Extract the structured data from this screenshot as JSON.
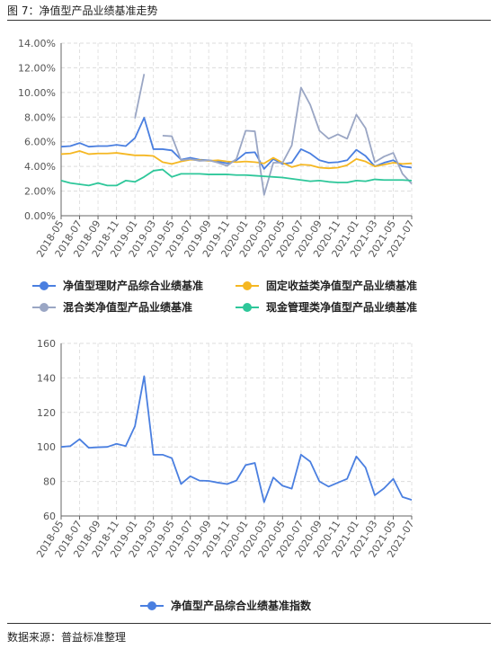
{
  "figure": {
    "title": "图 7：净值型产品业绩基准走势",
    "source": "数据来源：普益标准整理"
  },
  "chart_data": [
    {
      "type": "line",
      "x": [
        "2018-05",
        "2018-06",
        "2018-07",
        "2018-08",
        "2018-09",
        "2018-10",
        "2018-11",
        "2018-12",
        "2019-01",
        "2019-02",
        "2019-03",
        "2019-04",
        "2019-05",
        "2019-06",
        "2019-07",
        "2019-08",
        "2019-09",
        "2019-10",
        "2019-11",
        "2019-12",
        "2020-01",
        "2020-02",
        "2020-03",
        "2020-04",
        "2020-05",
        "2020-06",
        "2020-07",
        "2020-08",
        "2020-09",
        "2020-10",
        "2020-11",
        "2020-12",
        "2021-01",
        "2021-02",
        "2021-03",
        "2021-04",
        "2021-05",
        "2021-06",
        "2021-07"
      ],
      "x_tick_labels": [
        "2018-05",
        "2018-07",
        "2018-09",
        "2018-11",
        "2019-01",
        "2019-03",
        "2019-05",
        "2019-07",
        "2019-09",
        "2019-11",
        "2020-01",
        "2020-03",
        "2020-05",
        "2020-07",
        "2020-09",
        "2020-11",
        "2021-01",
        "2021-03",
        "2021-05",
        "2021-07"
      ],
      "y_tick_labels": [
        "0.00%",
        "2.00%",
        "4.00%",
        "6.00%",
        "8.00%",
        "10.00%",
        "12.00%",
        "14.00%"
      ],
      "ylim": [
        0,
        14
      ],
      "grid": true,
      "legend_position": "bottom",
      "series": [
        {
          "name": "净值型理财产品综合业绩基准",
          "color": "#4a7fe0",
          "values": [
            5.6,
            5.65,
            5.9,
            5.6,
            5.65,
            5.65,
            5.75,
            5.65,
            6.3,
            7.95,
            5.4,
            5.4,
            5.3,
            4.55,
            4.7,
            4.55,
            4.5,
            4.4,
            4.25,
            4.5,
            5.1,
            5.15,
            3.8,
            4.6,
            4.2,
            4.3,
            5.4,
            5.05,
            4.5,
            4.3,
            4.35,
            4.5,
            5.35,
            4.85,
            4.0,
            4.3,
            4.5,
            4.0,
            3.9
          ]
        },
        {
          "name": "固定收益类净值型产品业绩基准",
          "color": "#f5b722",
          "values": [
            5.0,
            5.05,
            5.25,
            5.0,
            5.05,
            5.05,
            5.1,
            5.0,
            4.9,
            4.9,
            4.85,
            4.35,
            4.2,
            4.4,
            4.55,
            4.5,
            4.45,
            4.5,
            4.4,
            4.35,
            4.4,
            4.35,
            4.25,
            4.7,
            4.3,
            3.95,
            4.15,
            4.1,
            3.9,
            3.85,
            3.9,
            4.1,
            4.6,
            4.4,
            4.0,
            4.15,
            4.3,
            4.2,
            4.25
          ]
        },
        {
          "name": "混合类净值型产品业绩基准",
          "color": "#9aa6c4",
          "values": [
            null,
            null,
            null,
            null,
            null,
            null,
            null,
            null,
            7.9,
            11.5,
            null,
            6.5,
            6.45,
            4.5,
            4.6,
            4.45,
            4.5,
            4.3,
            4.05,
            4.6,
            6.9,
            6.85,
            1.7,
            4.3,
            4.3,
            5.7,
            10.4,
            9.0,
            6.9,
            6.25,
            6.6,
            6.25,
            8.2,
            7.1,
            4.35,
            4.8,
            5.1,
            3.4,
            2.6
          ]
        },
        {
          "name": "现金管理类净值型产品业绩基准",
          "color": "#2ec79a",
          "values": [
            2.85,
            2.65,
            2.55,
            2.45,
            2.65,
            2.45,
            2.45,
            2.85,
            2.75,
            3.15,
            3.65,
            3.75,
            3.15,
            3.4,
            3.4,
            3.4,
            3.35,
            3.35,
            3.35,
            3.3,
            3.3,
            3.25,
            3.2,
            3.15,
            3.1,
            3.0,
            2.9,
            2.8,
            2.85,
            2.75,
            2.7,
            2.7,
            2.85,
            2.8,
            2.95,
            2.9,
            2.9,
            2.9,
            2.85
          ]
        }
      ]
    },
    {
      "type": "line",
      "x": [
        "2018-05",
        "2018-06",
        "2018-07",
        "2018-08",
        "2018-09",
        "2018-10",
        "2018-11",
        "2018-12",
        "2019-01",
        "2019-02",
        "2019-03",
        "2019-04",
        "2019-05",
        "2019-06",
        "2019-07",
        "2019-08",
        "2019-09",
        "2019-10",
        "2019-11",
        "2019-12",
        "2020-01",
        "2020-02",
        "2020-03",
        "2020-04",
        "2020-05",
        "2020-06",
        "2020-07",
        "2020-08",
        "2020-09",
        "2020-10",
        "2020-11",
        "2020-12",
        "2021-01",
        "2021-02",
        "2021-03",
        "2021-04",
        "2021-05",
        "2021-06",
        "2021-07"
      ],
      "x_tick_labels": [
        "2018-05",
        "2018-07",
        "2018-09",
        "2018-11",
        "2019-01",
        "2019-03",
        "2019-05",
        "2019-07",
        "2019-09",
        "2019-11",
        "2020-01",
        "2020-03",
        "2020-05",
        "2020-07",
        "2020-09",
        "2020-11",
        "2021-01",
        "2021-03",
        "2021-05",
        "2021-07"
      ],
      "y_tick_labels": [
        "60",
        "80",
        "100",
        "120",
        "140",
        "160"
      ],
      "ylim": [
        60,
        160
      ],
      "grid": true,
      "legend_position": "bottom",
      "series": [
        {
          "name": "净值型产品综合业绩基准指数",
          "color": "#4a7fe0",
          "values": [
            100,
            100.5,
            104.5,
            99.5,
            99.8,
            100,
            101.8,
            100.5,
            112,
            141,
            95.5,
            95.5,
            93.5,
            78.5,
            83,
            80.5,
            80.3,
            79.3,
            78.5,
            80.5,
            89.5,
            90.7,
            68,
            82.3,
            77.5,
            75.8,
            95.5,
            91.5,
            80,
            77,
            79.3,
            81.5,
            94.5,
            88,
            72,
            76,
            81.5,
            71,
            69.3
          ]
        }
      ]
    }
  ]
}
